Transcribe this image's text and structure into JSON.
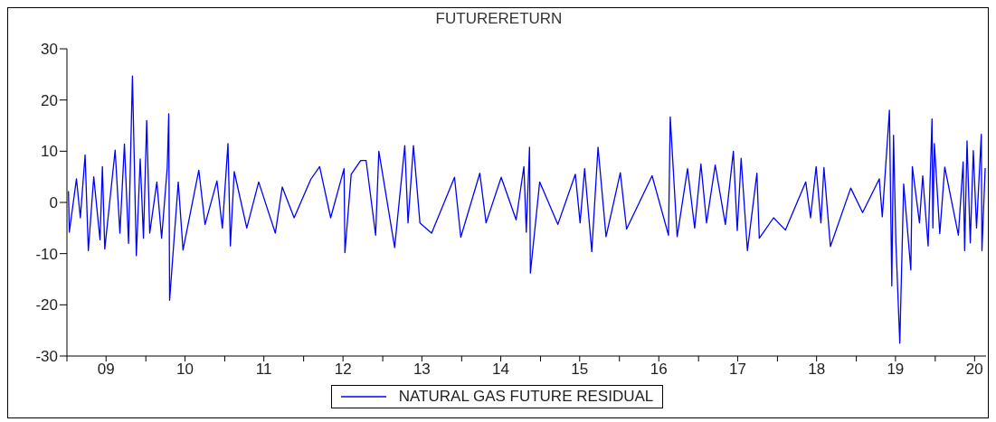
{
  "chart_data": {
    "type": "line",
    "title": "FUTURERETURN",
    "x": [
      "2009-01-08",
      "2009-01-12",
      "2009-02-14",
      "2009-03-04",
      "2009-03-26",
      "2009-04-10",
      "2009-05-05",
      "2009-06-03",
      "2009-06-14",
      "2009-06-25",
      "2009-08-12",
      "2009-09-03",
      "2009-09-24",
      "2009-10-13",
      "2009-10-31",
      "2009-11-18",
      "2009-12-06",
      "2009-12-21",
      "2010-01-05",
      "2010-01-19",
      "2010-02-21",
      "2010-03-15",
      "2010-04-10",
      "2010-04-17",
      "2010-04-21",
      "2010-05-31",
      "2010-06-22",
      "2010-09-03",
      "2010-10-02",
      "2010-11-26",
      "2010-12-21",
      "2011-01-16",
      "2011-01-27",
      "2011-02-14",
      "2011-04-13",
      "2011-06-07",
      "2011-08-23",
      "2011-09-24",
      "2011-11-18",
      "2012-02-03",
      "2012-03-15",
      "2012-05-05",
      "2012-07-06",
      "2012-07-10",
      "2012-08-08",
      "2012-09-21",
      "2012-10-16",
      "2012-11-29",
      "2012-12-14",
      "2013-02-25",
      "2013-04-13",
      "2013-04-28",
      "2013-05-23",
      "2013-06-22",
      "2013-08-15",
      "2013-11-29",
      "2013-12-28",
      "2014-03-26",
      "2014-04-24",
      "2014-07-03",
      "2014-09-10",
      "2014-10-16",
      "2014-10-27",
      "2014-11-11",
      "2014-11-15",
      "2014-12-28",
      "2015-03-22",
      "2015-06-11",
      "2015-07-03",
      "2015-07-24",
      "2015-08-26",
      "2015-09-24",
      "2015-10-31",
      "2016-01-05",
      "2016-02-03",
      "2016-05-31",
      "2016-08-15",
      "2016-08-23",
      "2016-09-24",
      "2016-11-11",
      "2016-12-14",
      "2017-01-12",
      "2017-02-07",
      "2017-03-19",
      "2017-05-05",
      "2017-06-11",
      "2017-06-29",
      "2017-07-17",
      "2017-08-15",
      "2017-09-28",
      "2017-10-09",
      "2017-12-14",
      "2018-02-07",
      "2018-05-12",
      "2018-06-03",
      "2018-06-29",
      "2018-07-21",
      "2018-08-04",
      "2018-09-03",
      "2018-12-06",
      "2019-01-30",
      "2019-04-17",
      "2019-05-01",
      "2019-06-03",
      "2019-06-14",
      "2019-06-22",
      "2019-07-03",
      "2019-07-21",
      "2019-08-08",
      "2019-09-10",
      "2019-09-17",
      "2019-10-20",
      "2019-11-04",
      "2019-11-29",
      "2019-12-17",
      "2019-12-21",
      "2019-12-28",
      "2020-01-22",
      "2020-02-14",
      "2020-04-17",
      "2020-05-09",
      "2020-05-16",
      "2020-05-27",
      "2020-06-11",
      "2020-06-25",
      "2020-07-10",
      "2020-08-01",
      "2020-08-04",
      "2020-08-19"
    ],
    "series": [
      {
        "name": "NATURAL GAS FUTURE RESIDUAL",
        "color": "#0000ff",
        "values": [
          2.2,
          -5.8,
          4.6,
          -3,
          9.3,
          -9.4,
          5,
          -7.3,
          7,
          -9.1,
          10.2,
          -6,
          11.4,
          -8,
          24.7,
          -10.4,
          8.5,
          -7,
          16,
          -6,
          4,
          -7,
          6.8,
          17.3,
          -19.1,
          4,
          -9.3,
          6.3,
          -4.3,
          4.2,
          -5,
          11.5,
          -8.5,
          6,
          -5,
          4,
          -6,
          3,
          -3,
          4.5,
          7,
          -3,
          6.6,
          -9.8,
          5.5,
          8.2,
          8.2,
          -6.4,
          10,
          -8.8,
          11.1,
          -4,
          11.1,
          -4,
          -6,
          4.9,
          -6.8,
          5.7,
          -4,
          4.9,
          -3.4,
          7,
          -5.8,
          10.8,
          -13.8,
          4,
          -4.3,
          5.5,
          -4,
          6.6,
          -9.6,
          10.8,
          -6.7,
          5.8,
          -5.2,
          5.2,
          -6.4,
          16.7,
          -6.7,
          6.6,
          -5,
          7.5,
          -4,
          7.3,
          -4.3,
          10,
          -5.5,
          8.6,
          -9.4,
          5.7,
          -7,
          -3,
          -5.4,
          4,
          -3,
          7,
          -4,
          6.8,
          -8.6,
          2.8,
          -2,
          4.6,
          -2.8,
          18,
          -16.3,
          13.1,
          -7.9,
          -27.5,
          3.6,
          -13.2,
          7,
          -4,
          5.2,
          -8.5,
          16.3,
          -5,
          11.5,
          -6.1,
          6.9,
          -6.4,
          7.9,
          -9.4,
          12,
          -7.9,
          10.1,
          -5,
          13.3,
          -9.4,
          6.7
        ]
      }
    ],
    "xlim": [
      "2009-01-01",
      "2020-08-23"
    ],
    "xticks": [
      {
        "value": "2009-01-01",
        "label": null
      },
      {
        "value": "2009-07-01",
        "label": "09"
      },
      {
        "value": "2010-01-01",
        "label": null
      },
      {
        "value": "2010-07-01",
        "label": "10"
      },
      {
        "value": "2011-01-01",
        "label": null
      },
      {
        "value": "2011-07-01",
        "label": "11"
      },
      {
        "value": "2012-01-01",
        "label": null
      },
      {
        "value": "2012-07-01",
        "label": "12"
      },
      {
        "value": "2013-01-01",
        "label": null
      },
      {
        "value": "2013-07-01",
        "label": "13"
      },
      {
        "value": "2014-01-01",
        "label": null
      },
      {
        "value": "2014-07-01",
        "label": "14"
      },
      {
        "value": "2015-01-01",
        "label": null
      },
      {
        "value": "2015-07-01",
        "label": "15"
      },
      {
        "value": "2016-01-01",
        "label": null
      },
      {
        "value": "2016-07-01",
        "label": "16"
      },
      {
        "value": "2017-01-01",
        "label": null
      },
      {
        "value": "2017-07-01",
        "label": "17"
      },
      {
        "value": "2018-01-01",
        "label": null
      },
      {
        "value": "2018-07-01",
        "label": "18"
      },
      {
        "value": "2019-01-01",
        "label": null
      },
      {
        "value": "2019-07-01",
        "label": "19"
      },
      {
        "value": "2020-01-01",
        "label": null
      },
      {
        "value": "2020-07-01",
        "label": "20"
      }
    ],
    "ylim": [
      -30,
      30
    ],
    "yticks": [
      -30,
      -20,
      -10,
      0,
      10,
      20,
      30
    ],
    "grid": false,
    "legend": "bottom"
  }
}
